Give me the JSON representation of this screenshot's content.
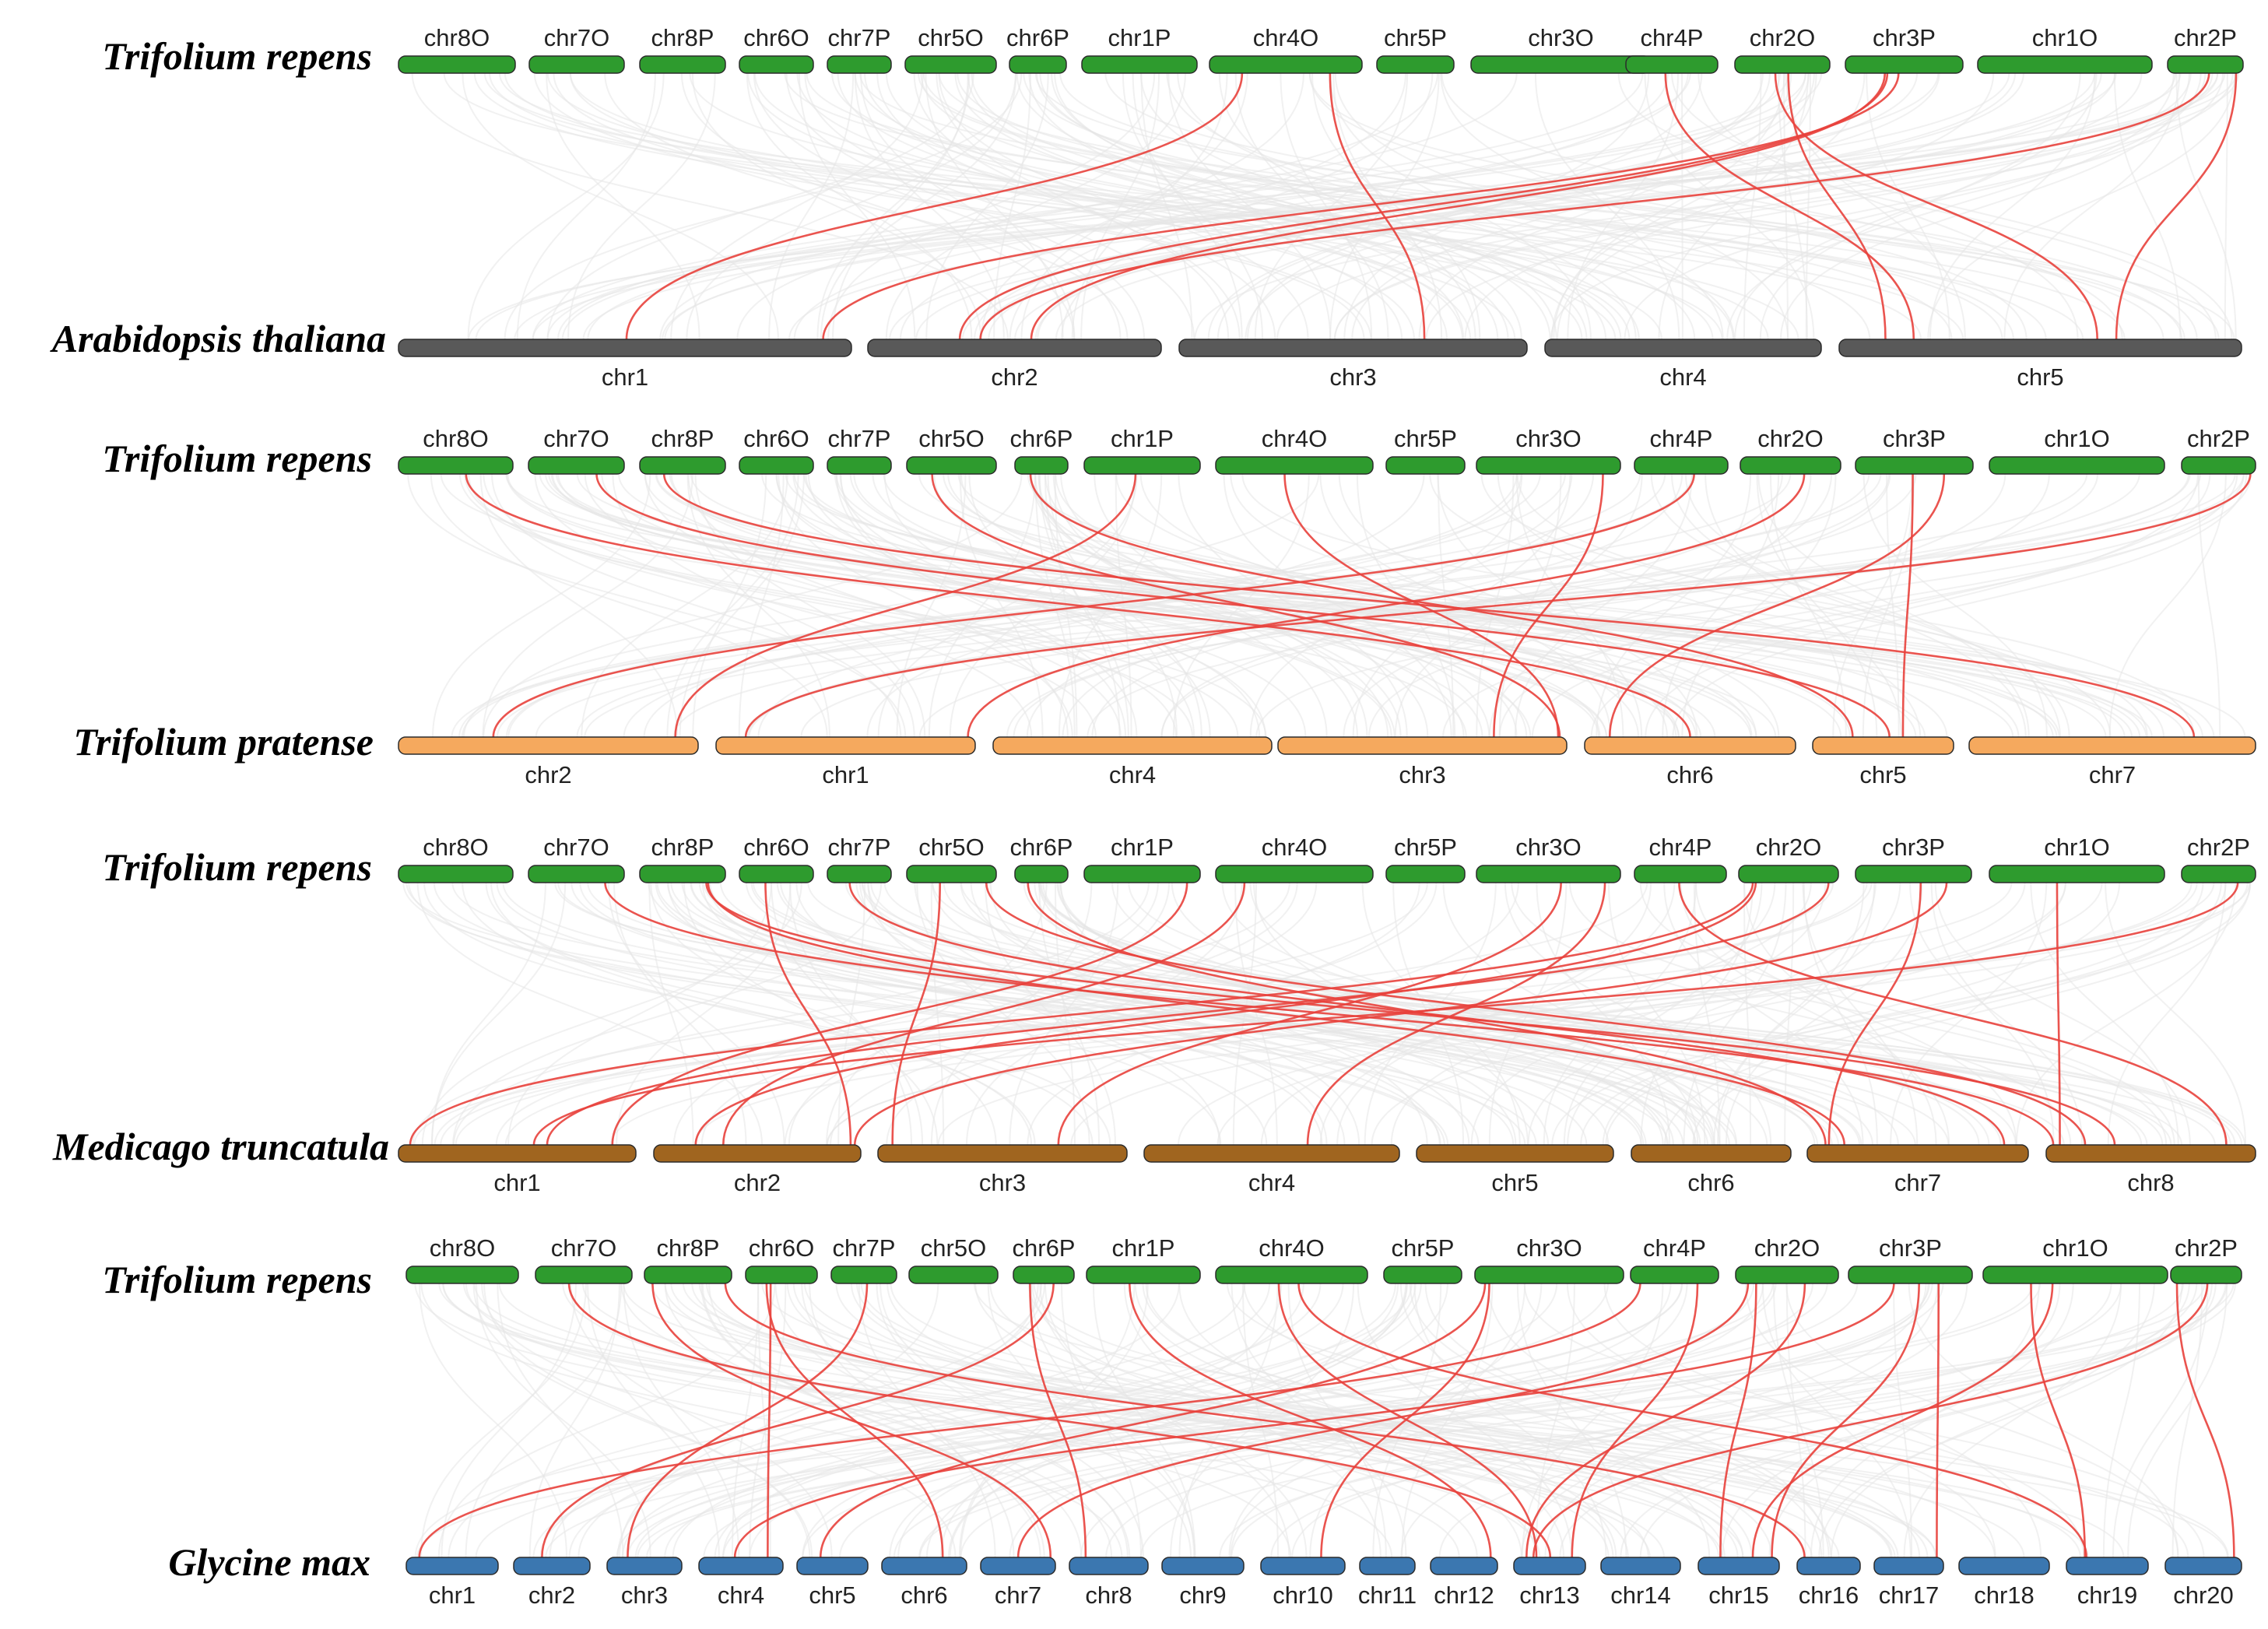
{
  "panels": [
    {
      "top_species": "Trifolium repens",
      "bottom_species": "Arabidopsis thaliana",
      "top_color": "#2e9b2e",
      "bottom_color": "#595959",
      "top_chromosomes": [
        "chr8O",
        "chr7O",
        "chr8P",
        "chr6O",
        "chr7P",
        "chr5O",
        "chr6P",
        "chr1P",
        "chr4O",
        "chr5P",
        "chr3O",
        "chr4P",
        "chr2O",
        "chr3P",
        "chr1O",
        "chr2P"
      ],
      "bottom_chromosomes": [
        "chr1",
        "chr2",
        "chr3",
        "chr4",
        "chr5"
      ],
      "highlighted_links": [
        {
          "top": "chr4O",
          "bottom": "chr1"
        },
        {
          "top": "chr4O",
          "bottom": "chr3"
        },
        {
          "top": "chr3P",
          "bottom": "chr1"
        },
        {
          "top": "chr3P",
          "bottom": "chr2"
        },
        {
          "top": "chr3P",
          "bottom": "chr2"
        },
        {
          "top": "chr2P",
          "bottom": "chr2"
        },
        {
          "top": "chr4P",
          "bottom": "chr5"
        },
        {
          "top": "chr2O",
          "bottom": "chr5"
        },
        {
          "top": "chr2O",
          "bottom": "chr5"
        },
        {
          "top": "chr2P",
          "bottom": "chr5"
        }
      ]
    },
    {
      "top_species": "Trifolium repens",
      "bottom_species": "Trifolium pratense",
      "top_color": "#2e9b2e",
      "bottom_color": "#f5a95e",
      "top_chromosomes": [
        "chr8O",
        "chr7O",
        "chr8P",
        "chr6O",
        "chr7P",
        "chr5O",
        "chr6P",
        "chr1P",
        "chr4O",
        "chr5P",
        "chr3O",
        "chr4P",
        "chr2O",
        "chr3P",
        "chr1O",
        "chr2P"
      ],
      "bottom_chromosomes": [
        "chr2",
        "chr1",
        "chr4",
        "chr3",
        "chr6",
        "chr5",
        "chr7"
      ],
      "highlighted_links": [
        {
          "top": "chr8O",
          "bottom": "chr6"
        },
        {
          "top": "chr7O",
          "bottom": "chr5"
        },
        {
          "top": "chr8P",
          "bottom": "chr7"
        },
        {
          "top": "chr5O",
          "bottom": "chr3"
        },
        {
          "top": "chr6P",
          "bottom": "chr5"
        },
        {
          "top": "chr1P",
          "bottom": "chr2"
        },
        {
          "top": "chr4O",
          "bottom": "chr3"
        },
        {
          "top": "chr3O",
          "bottom": "chr3"
        },
        {
          "top": "chr4P",
          "bottom": "chr2"
        },
        {
          "top": "chr2O",
          "bottom": "chr1"
        },
        {
          "top": "chr3P",
          "bottom": "chr5"
        },
        {
          "top": "chr3P",
          "bottom": "chr6"
        },
        {
          "top": "chr2P",
          "bottom": "chr1"
        }
      ]
    },
    {
      "top_species": "Trifolium repens",
      "bottom_species": "Medicago truncatula",
      "top_color": "#2e9b2e",
      "bottom_color": "#a0651f",
      "top_chromosomes": [
        "chr8O",
        "chr7O",
        "chr8P",
        "chr6O",
        "chr7P",
        "chr5O",
        "chr6P",
        "chr1P",
        "chr4O",
        "chr5P",
        "chr3O",
        "chr4P",
        "chr2O",
        "chr3P",
        "chr1O",
        "chr2P"
      ],
      "bottom_chromosomes": [
        "chr1",
        "chr2",
        "chr3",
        "chr4",
        "chr5",
        "chr6",
        "chr7",
        "chr8"
      ],
      "highlighted_links": [
        {
          "top": "chr7O",
          "bottom": "chr8"
        },
        {
          "top": "chr8P",
          "bottom": "chr7"
        },
        {
          "top": "chr8P",
          "bottom": "chr8"
        },
        {
          "top": "chr6O",
          "bottom": "chr2"
        },
        {
          "top": "chr7P",
          "bottom": "chr7"
        },
        {
          "top": "chr5O",
          "bottom": "chr3"
        },
        {
          "top": "chr5O",
          "bottom": "chr8"
        },
        {
          "top": "chr6P",
          "bottom": "chr7"
        },
        {
          "top": "chr1P",
          "bottom": "chr1"
        },
        {
          "top": "chr4O",
          "bottom": "chr2"
        },
        {
          "top": "chr3O",
          "bottom": "chr3"
        },
        {
          "top": "chr3O",
          "bottom": "chr4"
        },
        {
          "top": "chr4P",
          "bottom": "chr8"
        },
        {
          "top": "chr2O",
          "bottom": "chr1"
        },
        {
          "top": "chr2O",
          "bottom": "chr2"
        },
        {
          "top": "chr2O",
          "bottom": "chr1"
        },
        {
          "top": "chr3P",
          "bottom": "chr7"
        },
        {
          "top": "chr3P",
          "bottom": "chr2"
        },
        {
          "top": "chr1O",
          "bottom": "chr8"
        },
        {
          "top": "chr2P",
          "bottom": "chr1"
        }
      ]
    },
    {
      "top_species": "Trifolium repens",
      "bottom_species": "Glycine max",
      "top_color": "#2e9b2e",
      "bottom_color": "#3b77b0",
      "top_chromosomes": [
        "chr8O",
        "chr7O",
        "chr8P",
        "chr6O",
        "chr7P",
        "chr5O",
        "chr6P",
        "chr1P",
        "chr4O",
        "chr5P",
        "chr3O",
        "chr4P",
        "chr2O",
        "chr3P",
        "chr1O",
        "chr2P"
      ],
      "bottom_chromosomes": [
        "chr1",
        "chr2",
        "chr3",
        "chr4",
        "chr5",
        "chr6",
        "chr7",
        "chr8",
        "chr9",
        "chr10",
        "chr11",
        "chr12",
        "chr13",
        "chr14",
        "chr15",
        "chr16",
        "chr17",
        "chr18",
        "chr19",
        "chr20"
      ],
      "highlighted_links": [
        {
          "top": "chr7O",
          "bottom": "chr13"
        },
        {
          "top": "chr8P",
          "bottom": "chr7"
        },
        {
          "top": "chr8P",
          "bottom": "chr16"
        },
        {
          "top": "chr6O",
          "bottom": "chr4"
        },
        {
          "top": "chr6O",
          "bottom": "chr6"
        },
        {
          "top": "chr7P",
          "bottom": "chr3"
        },
        {
          "top": "chr6P",
          "bottom": "chr8"
        },
        {
          "top": "chr6P",
          "bottom": "chr2"
        },
        {
          "top": "chr1P",
          "bottom": "chr12"
        },
        {
          "top": "chr4O",
          "bottom": "chr13"
        },
        {
          "top": "chr4O",
          "bottom": "chr19"
        },
        {
          "top": "chr3O",
          "bottom": "chr10"
        },
        {
          "top": "chr3O",
          "bottom": "chr5"
        },
        {
          "top": "chr4P",
          "bottom": "chr13"
        },
        {
          "top": "chr4P",
          "bottom": "chr1"
        },
        {
          "top": "chr2O",
          "bottom": "chr13"
        },
        {
          "top": "chr2O",
          "bottom": "chr15"
        },
        {
          "top": "chr2O",
          "bottom": "chr7"
        },
        {
          "top": "chr3P",
          "bottom": "chr4"
        },
        {
          "top": "chr3P",
          "bottom": "chr17"
        },
        {
          "top": "chr3P",
          "bottom": "chr15"
        },
        {
          "top": "chr1O",
          "bottom": "chr19"
        },
        {
          "top": "chr1O",
          "bottom": "chr15"
        },
        {
          "top": "chr2P",
          "bottom": "chr20"
        },
        {
          "top": "chr2P",
          "bottom": "chr13"
        }
      ]
    }
  ]
}
